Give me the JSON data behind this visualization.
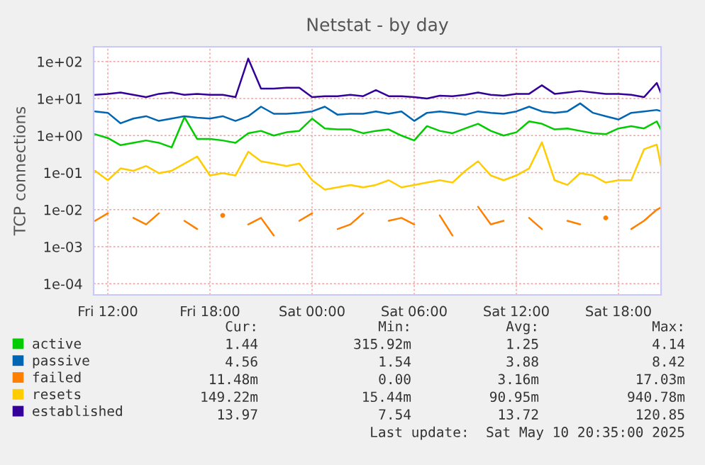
{
  "chart_data": {
    "type": "line",
    "title": "Netstat - by day",
    "ylabel": "TCP connections",
    "x": [
      "2025-05-09T11:15",
      "2025-05-09T12:00",
      "2025-05-09T12:45",
      "2025-05-09T13:30",
      "2025-05-09T14:15",
      "2025-05-09T15:00",
      "2025-05-09T15:45",
      "2025-05-09T16:30",
      "2025-05-09T17:15",
      "2025-05-09T18:00",
      "2025-05-09T18:45",
      "2025-05-09T19:30",
      "2025-05-09T20:15",
      "2025-05-09T21:00",
      "2025-05-09T21:45",
      "2025-05-09T22:30",
      "2025-05-09T23:15",
      "2025-05-10T00:00",
      "2025-05-10T00:45",
      "2025-05-10T01:30",
      "2025-05-10T02:15",
      "2025-05-10T03:00",
      "2025-05-10T03:45",
      "2025-05-10T04:30",
      "2025-05-10T05:15",
      "2025-05-10T06:00",
      "2025-05-10T06:45",
      "2025-05-10T07:30",
      "2025-05-10T08:15",
      "2025-05-10T09:00",
      "2025-05-10T09:45",
      "2025-05-10T10:30",
      "2025-05-10T11:15",
      "2025-05-10T12:00",
      "2025-05-10T12:45",
      "2025-05-10T13:30",
      "2025-05-10T14:15",
      "2025-05-10T15:00",
      "2025-05-10T15:45",
      "2025-05-10T16:30",
      "2025-05-10T17:15",
      "2025-05-10T18:00",
      "2025-05-10T18:45",
      "2025-05-10T19:30",
      "2025-05-10T20:15",
      "2025-05-10T20:30"
    ],
    "series": [
      {
        "name": "active",
        "color": "#00cc00",
        "values": [
          1.09,
          0.86,
          0.55,
          0.64,
          0.74,
          0.64,
          0.48,
          3.15,
          0.81,
          0.81,
          0.74,
          0.64,
          1.16,
          1.34,
          1.0,
          1.23,
          1.34,
          2.88,
          1.56,
          1.47,
          1.47,
          1.16,
          1.34,
          1.47,
          1.0,
          0.74,
          1.8,
          1.34,
          1.16,
          1.56,
          2.09,
          1.34,
          1.0,
          1.23,
          2.42,
          2.09,
          1.47,
          1.56,
          1.34,
          1.16,
          1.09,
          1.56,
          1.8,
          1.56,
          2.42,
          1.44
        ]
      },
      {
        "name": "passive",
        "color": "#0066b3",
        "values": [
          4.5,
          4.12,
          2.15,
          2.88,
          3.34,
          2.49,
          2.88,
          3.34,
          3.06,
          2.88,
          3.34,
          2.49,
          3.34,
          6.04,
          3.88,
          3.88,
          4.12,
          4.5,
          6.04,
          3.66,
          3.88,
          3.88,
          4.5,
          3.88,
          4.5,
          2.49,
          4.12,
          4.5,
          4.12,
          3.66,
          4.5,
          4.12,
          3.88,
          4.5,
          6.04,
          4.5,
          4.12,
          4.5,
          7.4,
          4.12,
          3.34,
          2.72,
          4.12,
          4.5,
          4.92,
          4.56
        ]
      },
      {
        "name": "failed",
        "color": "#ff8000",
        "values": [
          0.005,
          0.008,
          null,
          0.006,
          0.004,
          0.008,
          null,
          0.005,
          0.003,
          null,
          0.007,
          null,
          0.004,
          0.006,
          0.002,
          null,
          0.005,
          0.008,
          null,
          0.003,
          0.004,
          0.008,
          null,
          0.005,
          0.006,
          0.004,
          null,
          0.007,
          0.002,
          null,
          0.012,
          0.004,
          0.005,
          null,
          0.006,
          0.003,
          null,
          0.005,
          0.004,
          null,
          0.006,
          null,
          0.003,
          0.005,
          0.01,
          0.0115
        ]
      },
      {
        "name": "resets",
        "color": "#ffcc00",
        "values": [
          0.112,
          0.0624,
          0.13,
          0.112,
          0.151,
          0.097,
          0.112,
          0.175,
          0.273,
          0.0838,
          0.097,
          0.0838,
          0.366,
          0.203,
          0.175,
          0.151,
          0.175,
          0.0624,
          0.0347,
          0.0401,
          0.0465,
          0.0401,
          0.0465,
          0.0624,
          0.0401,
          0.0465,
          0.0538,
          0.0624,
          0.0538,
          0.112,
          0.203,
          0.0838,
          0.0624,
          0.0838,
          0.13,
          0.661,
          0.0624,
          0.0465,
          0.097,
          0.0838,
          0.0538,
          0.0624,
          0.0624,
          0.425,
          0.57,
          0.149
        ]
      },
      {
        "name": "established",
        "color": "#330099",
        "values": [
          12.6,
          13.4,
          14.6,
          12.6,
          10.9,
          13.4,
          14.6,
          12.6,
          13.4,
          12.6,
          12.6,
          10.9,
          120,
          18.5,
          18.5,
          19.7,
          19.7,
          10.9,
          11.6,
          11.6,
          12.6,
          11.6,
          16.9,
          11.6,
          11.6,
          10.9,
          10,
          11.9,
          11.6,
          12.6,
          14.6,
          12.6,
          11.9,
          13.4,
          13.4,
          22.8,
          13.4,
          14.6,
          16,
          14.6,
          13.4,
          13.4,
          12.6,
          10.9,
          26.4,
          14
        ]
      }
    ],
    "log": true,
    "grid": true,
    "legend": "bottom left",
    "xlim": [
      "2025-05-09T11:10",
      "2025-05-10T20:30"
    ],
    "xticks": [
      {
        "value": "2025-05-09T12:00",
        "label": "Fri 12:00"
      },
      {
        "value": "2025-05-09T18:00",
        "label": "Fri 18:00"
      },
      {
        "value": "2025-05-10T00:00",
        "label": "Sat 00:00"
      },
      {
        "value": "2025-05-10T06:00",
        "label": "Sat 06:00"
      },
      {
        "value": "2025-05-10T12:00",
        "label": "Sat 12:00"
      },
      {
        "value": "2025-05-10T18:00",
        "label": "Sat 18:00"
      }
    ],
    "ylim": [
      5e-05,
      250
    ],
    "yticks": [
      {
        "value": 0.0001,
        "label": "1e-04"
      },
      {
        "value": 0.001,
        "label": "1e-03"
      },
      {
        "value": 0.01,
        "label": "1e-02"
      },
      {
        "value": 0.1,
        "label": "1e-01"
      },
      {
        "value": 1,
        "label": "1e+00"
      },
      {
        "value": 10,
        "label": "1e+01"
      },
      {
        "value": 100,
        "label": "1e+02"
      }
    ],
    "annotations": [
      "Cur:",
      "Min:",
      "Avg:",
      "Max:",
      "1.44",
      "315.92m",
      "1.25",
      "4.14",
      "4.56",
      "1.54",
      "3.88",
      "8.42",
      "11.48m",
      "0.00",
      "3.16m",
      "17.03m",
      "149.22m",
      "15.44m",
      "90.95m",
      "940.78m",
      "13.97",
      "7.54",
      "13.72",
      "120.85",
      "Last update:  Sat May 10 20:35:00 2025"
    ]
  }
}
